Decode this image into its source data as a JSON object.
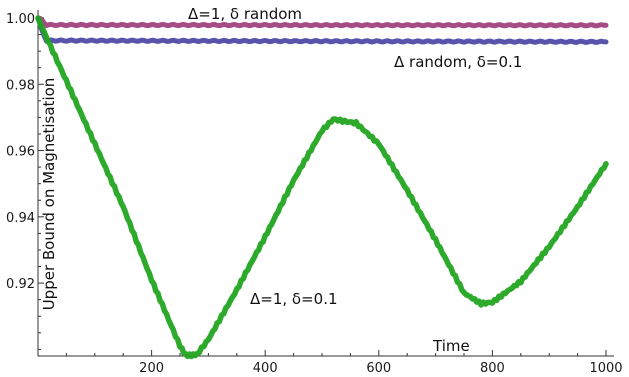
{
  "chart_data": {
    "type": "line",
    "xlabel": "Time",
    "ylabel": "Upper Bound on Magnetisation",
    "xlim": [
      0,
      1000
    ],
    "ylim": [
      0.898,
      1.0
    ],
    "x_ticks": [
      200,
      400,
      600,
      800,
      1000
    ],
    "x_tick_labels": [
      "200",
      "400",
      "600",
      "800",
      "1000"
    ],
    "y_ticks": [
      0.92,
      0.94,
      0.96,
      0.98,
      1.0
    ],
    "y_tick_labels": [
      "0.92",
      "0.94",
      "0.96",
      "0.98",
      "1.00"
    ],
    "grid": false,
    "series": [
      {
        "name": "Δ=1, δ random",
        "color": "#a0427e",
        "x": [
          0,
          5,
          15,
          1000
        ],
        "values": [
          1.0,
          0.9996,
          0.9979,
          0.9978
        ]
      },
      {
        "name": "Δ random, δ=0.1",
        "color": "#4f4aa6",
        "x": [
          0,
          5,
          15,
          1000
        ],
        "values": [
          1.0,
          0.997,
          0.9932,
          0.9928
        ]
      },
      {
        "name": "Δ=1, δ=0.1",
        "color": "#22a520",
        "x": [
          0,
          10,
          50,
          100,
          150,
          200,
          230,
          250,
          260,
          270,
          280,
          300,
          350,
          400,
          450,
          500,
          520,
          540,
          560,
          600,
          650,
          700,
          750,
          780,
          800,
          850,
          900,
          950,
          1000
        ],
        "values": [
          1.0,
          0.996,
          0.981,
          0.962,
          0.943,
          0.921,
          0.909,
          0.901,
          0.8983,
          0.8982,
          0.8985,
          0.903,
          0.918,
          0.934,
          0.951,
          0.966,
          0.9695,
          0.9688,
          0.9683,
          0.962,
          0.948,
          0.933,
          0.917,
          0.9138,
          0.9142,
          0.9205,
          0.931,
          0.943,
          0.956
        ]
      }
    ],
    "annotations": [
      {
        "text": "Δ=1, δ random",
        "series": 0
      },
      {
        "text": "Δ random, δ=0.1",
        "series": 1
      },
      {
        "text": "Δ=1, δ=0.1",
        "series": 2
      }
    ]
  }
}
